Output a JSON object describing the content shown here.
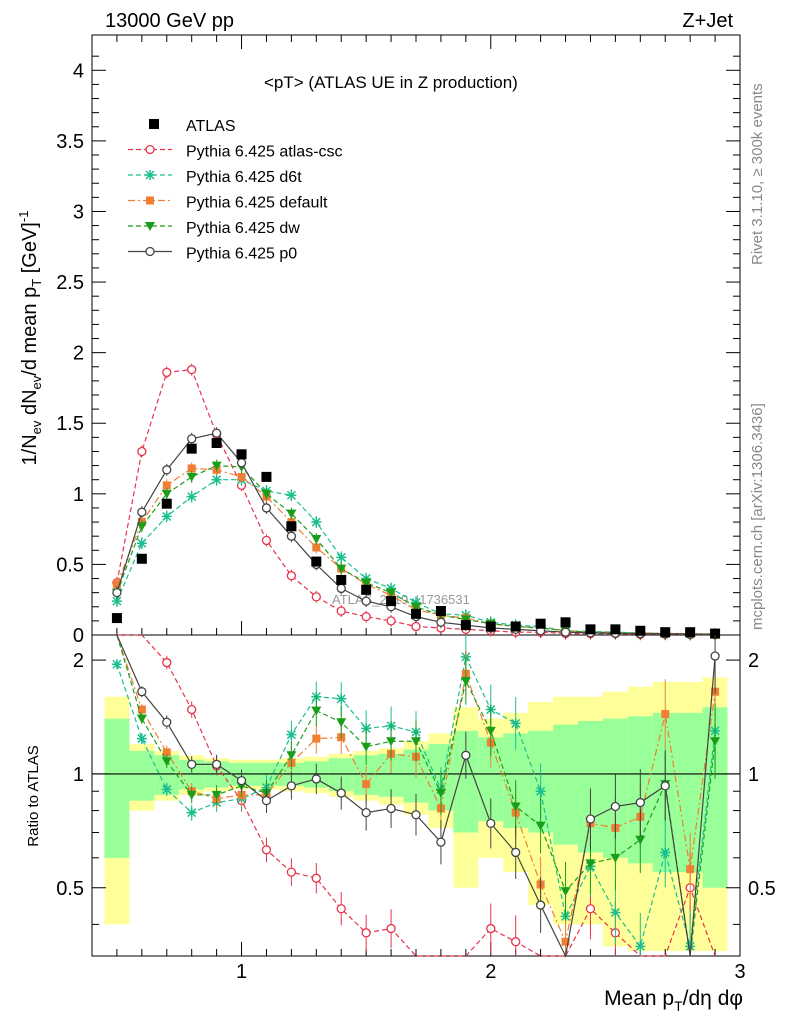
{
  "header": {
    "left": "13000 GeV pp",
    "right": "Z+Jet"
  },
  "side_labels": {
    "top": "Rivet 3.1.10, ≥ 300k events",
    "bottom": "mcplots.cern.ch [arXiv:1306.3436]"
  },
  "watermark": "ATLAS_2019_I1736531",
  "chart_data": {
    "type": "line",
    "title": "<pT> (ATLAS UE in Z production)",
    "xlabel": "Mean p_T/dη dφ",
    "ylabel": "1/N_ev dN_ev/d mean p_T [GeV]^-1",
    "ratio_ylabel": "Ratio to ATLAS",
    "xlim": [
      0.4,
      3.0
    ],
    "ylim": [
      0,
      4.25
    ],
    "ratio_ylim": [
      0.33,
      2.33
    ],
    "x_ticks": [
      "1",
      "2",
      "3"
    ],
    "y_ticks": [
      "0",
      "0.5",
      "1",
      "1.5",
      "2",
      "2.5",
      "3",
      "3.5",
      "4"
    ],
    "ratio_ticks": [
      "0.5",
      "1",
      "2"
    ],
    "legend_position": "top-left",
    "x": [
      0.5,
      0.6,
      0.7,
      0.8,
      0.9,
      1.0,
      1.1,
      1.2,
      1.3,
      1.4,
      1.5,
      1.6,
      1.7,
      1.8,
      1.9,
      2.0,
      2.1,
      2.2,
      2.3,
      2.4,
      2.5,
      2.6,
      2.7,
      2.8,
      2.9
    ],
    "data": {
      "name": "ATLAS",
      "color": "#000000",
      "values": [
        0.12,
        0.54,
        0.93,
        1.32,
        1.36,
        1.28,
        1.12,
        0.77,
        0.52,
        0.39,
        0.32,
        0.24,
        0.15,
        0.17,
        0.07,
        0.06,
        0.06,
        0.08,
        0.09,
        0.04,
        0.04,
        0.03,
        0.02,
        0.02,
        0.01
      ]
    },
    "series": [
      {
        "name": "Pythia 6.425 atlas-csc",
        "color": "#e8334a",
        "style": "dashed",
        "marker": "open-circle",
        "values": [
          0.37,
          1.3,
          1.86,
          1.88,
          1.42,
          1.06,
          0.67,
          0.42,
          0.27,
          0.17,
          0.13,
          0.1,
          0.06,
          0.05,
          0.04,
          0.03,
          0.02,
          0.02,
          0.01,
          0.01,
          0.01,
          0.005,
          0.005,
          0.004,
          0.003
        ],
        "ratio": [
          3.0,
          2.35,
          1.97,
          1.48,
          1.05,
          0.85,
          0.63,
          0.55,
          0.53,
          0.44,
          0.38,
          0.39,
          0.3,
          0.28,
          0.28,
          0.39,
          0.36,
          0.25,
          0.22,
          0.44,
          0.38,
          0.2,
          0.2,
          0.5,
          0.3
        ]
      },
      {
        "name": "Pythia 6.425 d6t",
        "color": "#1bbf8f",
        "style": "dashed",
        "marker": "star",
        "values": [
          0.24,
          0.65,
          0.84,
          0.98,
          1.1,
          1.1,
          1.02,
          0.99,
          0.8,
          0.55,
          0.4,
          0.33,
          0.23,
          0.15,
          0.14,
          0.09,
          0.07,
          0.06,
          0.03,
          0.025,
          0.02,
          0.015,
          0.01,
          0.008,
          0.006
        ],
        "ratio": [
          1.95,
          1.24,
          0.91,
          0.79,
          0.84,
          0.86,
          0.92,
          1.27,
          1.6,
          1.58,
          1.32,
          1.34,
          1.29,
          0.91,
          2.04,
          1.48,
          1.36,
          0.9,
          0.42,
          0.57,
          0.43,
          0.35,
          0.62,
          0.35,
          1.3
        ]
      },
      {
        "name": "Pythia 6.425 default",
        "color": "#f07f33",
        "style": "dash-dot",
        "marker": "square",
        "values": [
          0.36,
          0.8,
          1.06,
          1.18,
          1.17,
          1.12,
          0.98,
          0.8,
          0.62,
          0.47,
          0.36,
          0.28,
          0.18,
          0.14,
          0.12,
          0.08,
          0.06,
          0.05,
          0.03,
          0.02,
          0.018,
          0.014,
          0.012,
          0.009,
          0.007
        ],
        "ratio": [
          2.9,
          1.48,
          1.14,
          0.9,
          0.86,
          0.88,
          0.88,
          1.07,
          1.24,
          1.25,
          0.94,
          1.13,
          1.11,
          0.81,
          1.84,
          1.21,
          0.79,
          0.51,
          0.36,
          0.74,
          0.72,
          0.77,
          1.44,
          0.56,
          1.65
        ]
      },
      {
        "name": "Pythia 6.425 dw",
        "color": "#1a9e1a",
        "style": "dashed",
        "marker": "down-triangle",
        "values": [
          0.3,
          0.77,
          1.0,
          1.12,
          1.2,
          1.19,
          1.0,
          0.86,
          0.68,
          0.47,
          0.37,
          0.3,
          0.2,
          0.14,
          0.11,
          0.08,
          0.06,
          0.05,
          0.03,
          0.02,
          0.016,
          0.012,
          0.01,
          0.008,
          0.006
        ],
        "ratio": [
          2.5,
          1.4,
          1.08,
          0.88,
          0.88,
          0.93,
          0.89,
          1.12,
          1.47,
          1.37,
          1.18,
          1.22,
          1.22,
          0.89,
          1.76,
          1.3,
          0.82,
          0.73,
          0.49,
          0.58,
          0.6,
          0.67,
          0.94,
          0.31,
          1.22
        ]
      },
      {
        "name": "Pythia 6.425 p0",
        "color": "#444444",
        "style": "solid",
        "marker": "open-circle",
        "values": [
          0.3,
          0.87,
          1.17,
          1.39,
          1.43,
          1.22,
          0.9,
          0.7,
          0.5,
          0.33,
          0.24,
          0.2,
          0.13,
          0.09,
          0.07,
          0.05,
          0.04,
          0.03,
          0.02,
          0.015,
          0.012,
          0.01,
          0.008,
          0.006,
          0.005
        ],
        "ratio": [
          2.33,
          1.65,
          1.37,
          1.06,
          1.06,
          0.96,
          0.85,
          0.93,
          0.97,
          0.89,
          0.79,
          0.81,
          0.78,
          0.66,
          1.12,
          0.74,
          0.62,
          0.45,
          0.25,
          0.76,
          0.82,
          0.84,
          0.93,
          0.26,
          2.05
        ]
      }
    ],
    "data_band_inner": [
      0.4,
      0.15,
      0.12,
      0.09,
      0.08,
      0.07,
      0.07,
      0.07,
      0.08,
      0.1,
      0.12,
      0.13,
      0.16,
      0.2,
      0.3,
      0.25,
      0.28,
      0.3,
      0.35,
      0.38,
      0.4,
      0.42,
      0.45,
      0.45,
      0.5
    ],
    "data_band_outer": [
      0.6,
      0.2,
      0.15,
      0.12,
      0.1,
      0.09,
      0.09,
      0.1,
      0.11,
      0.13,
      0.15,
      0.17,
      0.22,
      0.28,
      0.5,
      0.4,
      0.45,
      0.55,
      0.6,
      0.6,
      0.65,
      0.7,
      0.75,
      0.75,
      0.8
    ]
  }
}
